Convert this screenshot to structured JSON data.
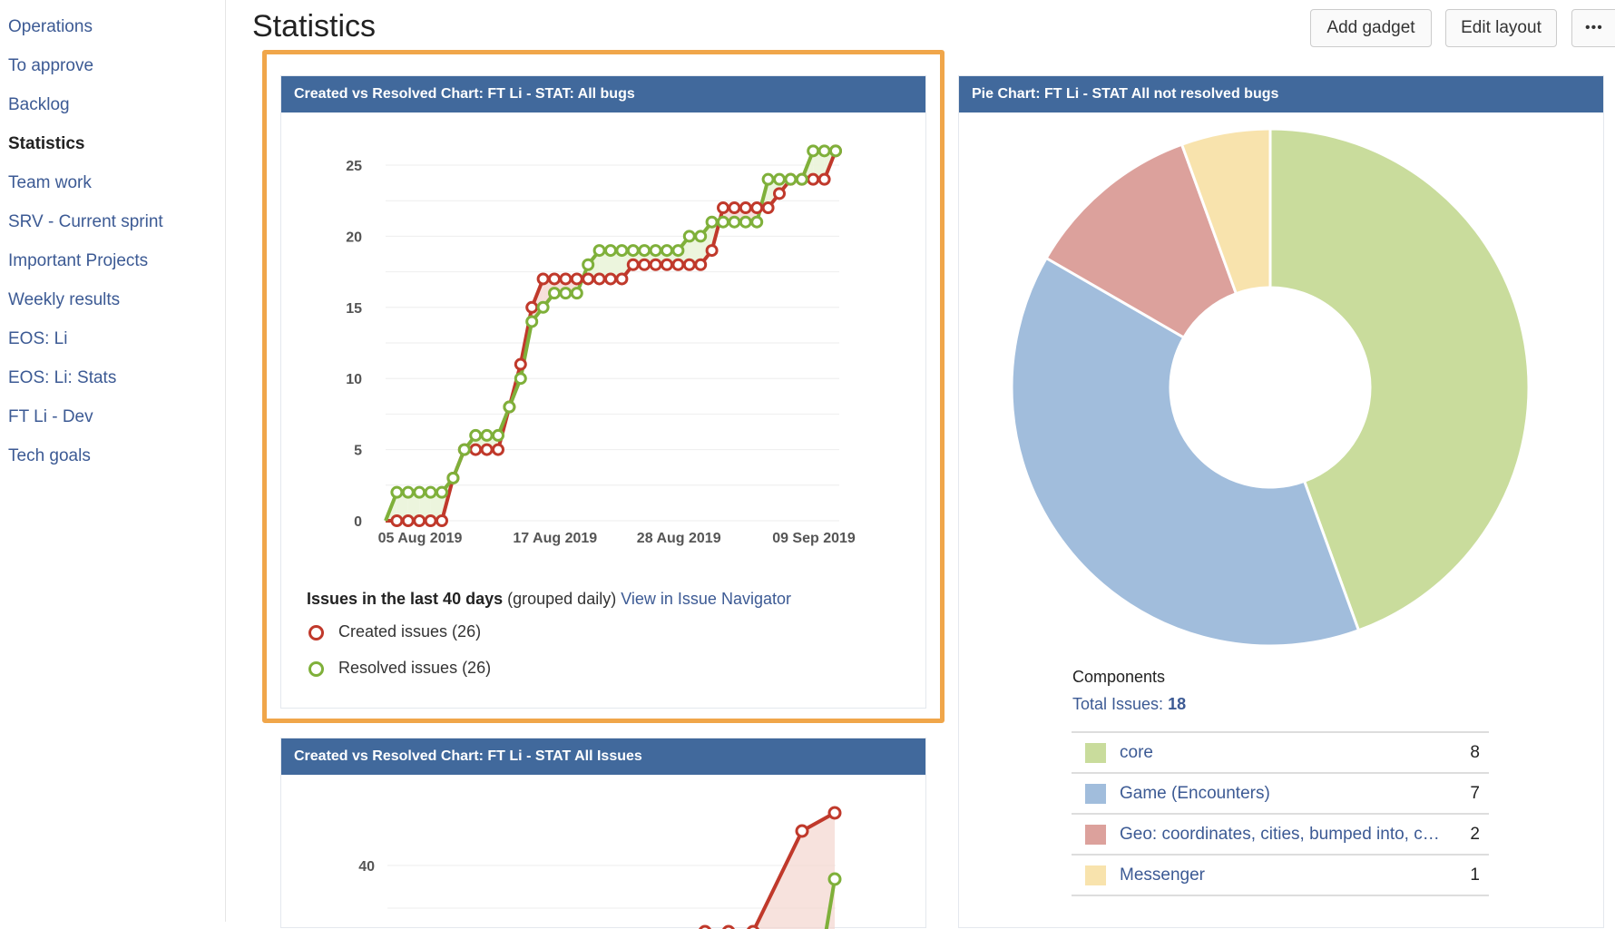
{
  "sidebar": {
    "items": [
      {
        "label": "Operations",
        "active": false
      },
      {
        "label": "To approve",
        "active": false
      },
      {
        "label": "Backlog",
        "active": false
      },
      {
        "label": "Statistics",
        "active": true
      },
      {
        "label": "Team work",
        "active": false
      },
      {
        "label": "SRV - Current sprint",
        "active": false
      },
      {
        "label": "Important Projects",
        "active": false
      },
      {
        "label": "Weekly results",
        "active": false
      },
      {
        "label": "EOS: Li",
        "active": false
      },
      {
        "label": "EOS: Li: Stats",
        "active": false
      },
      {
        "label": "FT Li - Dev",
        "active": false
      },
      {
        "label": "Tech goals",
        "active": false
      }
    ]
  },
  "header": {
    "title": "Statistics",
    "add_gadget": "Add gadget",
    "edit_layout": "Edit layout",
    "more": "•••"
  },
  "colors": {
    "created": "#c0392b",
    "resolved": "#7fb03a",
    "header_bg": "#41699c",
    "highlight": "#f0a64a"
  },
  "gadget1": {
    "title": "Created vs Resolved Chart: FT Li - STAT: All bugs",
    "summary_bold": "Issues in the last 40 days",
    "summary_rest": "(grouped daily)",
    "link": "View in Issue Navigator",
    "legend_created": "Created issues (26)",
    "legend_resolved": "Resolved issues (26)"
  },
  "gadget2": {
    "title": "Created vs Resolved Chart: FT Li - STAT All Issues",
    "ytick": "40"
  },
  "pie_gadget": {
    "title": "Pie Chart: FT Li - STAT All not resolved bugs",
    "components_label": "Components",
    "total_label": "Total Issues:",
    "total_value": "18"
  },
  "chart_data": [
    {
      "type": "line",
      "title": "Created vs Resolved Chart: FT Li - STAT: All bugs",
      "x_tick_labels": [
        "05 Aug 2019",
        "17 Aug 2019",
        "28 Aug 2019",
        "09 Sep 2019"
      ],
      "x_tick_days": [
        0,
        12,
        23,
        35
      ],
      "y_ticks": [
        "0",
        "5",
        "10",
        "15",
        "20",
        "25"
      ],
      "ylim": [
        0,
        26
      ],
      "grid": true,
      "series": [
        {
          "name": "Created issues (26)",
          "color": "#c0392b",
          "values": [
            0,
            0,
            0,
            0,
            0,
            0,
            3,
            5,
            5,
            5,
            5,
            8,
            11,
            15,
            17,
            17,
            17,
            17,
            17,
            17,
            17,
            17,
            18,
            18,
            18,
            18,
            18,
            18,
            18,
            19,
            22,
            22,
            22,
            22,
            22,
            23,
            24,
            24,
            24,
            24,
            26
          ]
        },
        {
          "name": "Resolved issues (26)",
          "color": "#7fb03a",
          "values": [
            0,
            2,
            2,
            2,
            2,
            2,
            3,
            5,
            6,
            6,
            6,
            8,
            10,
            14,
            15,
            16,
            16,
            16,
            18,
            19,
            19,
            19,
            19,
            19,
            19,
            19,
            19,
            20,
            20,
            21,
            21,
            21,
            21,
            21,
            24,
            24,
            24,
            24,
            26,
            26,
            26
          ]
        }
      ]
    },
    {
      "type": "pie",
      "title": "Pie Chart: FT Li - STAT All not resolved bugs",
      "slices": [
        {
          "label": "core",
          "value": 8,
          "color": "#c9dc9c"
        },
        {
          "label": "Game (Encounters)",
          "value": 7,
          "color": "#a1bddc"
        },
        {
          "label": "Geo: coordinates, cities, bumped into, c…",
          "value": 2,
          "color": "#dca19c"
        },
        {
          "label": "Messenger",
          "value": 1,
          "color": "#f8e3ad"
        }
      ]
    }
  ]
}
